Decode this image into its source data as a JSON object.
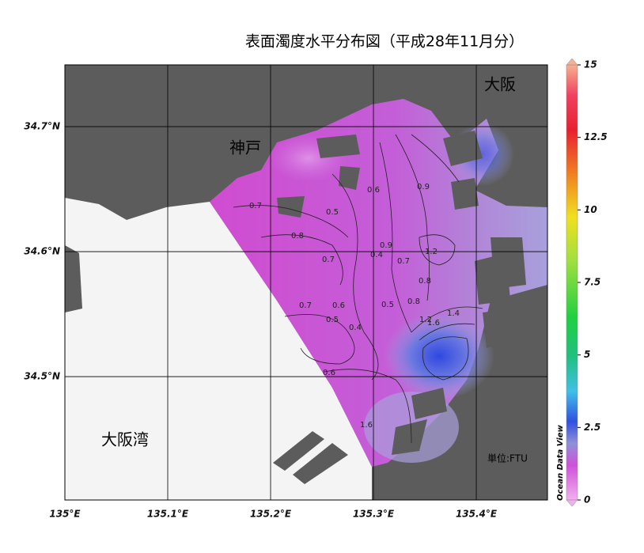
{
  "map": {
    "title": "表面濁度水平分布図（平成28年11月分）",
    "xlim": [
      135,
      135.4692
    ],
    "ylim": [
      34.4013,
      34.7494
    ],
    "xticks": [
      {
        "value": 135,
        "label": "135°E"
      },
      {
        "value": 135.1,
        "label": "135.1°E"
      },
      {
        "value": 135.2,
        "label": "135.2°E"
      },
      {
        "value": 135.3,
        "label": "135.3°E"
      },
      {
        "value": 135.4,
        "label": "135.4°E"
      }
    ],
    "yticks": [
      {
        "value": 34.5,
        "label": "34.5°N"
      },
      {
        "value": 34.6,
        "label": "34.6°N"
      },
      {
        "value": 34.7,
        "label": "34.7°N"
      }
    ],
    "places": [
      "神戸",
      "大阪",
      "大阪湾"
    ],
    "unit": "単位:FTU",
    "watermark": "Ocean Data View",
    "colorbar": {
      "lim": [
        0,
        15
      ],
      "ticks": [
        0,
        2.5,
        5,
        7.5,
        10,
        12.5,
        15
      ]
    },
    "contour_labels": [
      "0.7",
      "0.8",
      "0.5",
      "0.6",
      "0.9",
      "0.7",
      "0.9",
      "0.4",
      "0.7",
      "1.2",
      "0.8",
      "0.7",
      "0.6",
      "0.5",
      "0.5",
      "0.8",
      "0.4",
      "1.2",
      "1.4",
      "1.6",
      "0.6",
      "1.6"
    ]
  }
}
